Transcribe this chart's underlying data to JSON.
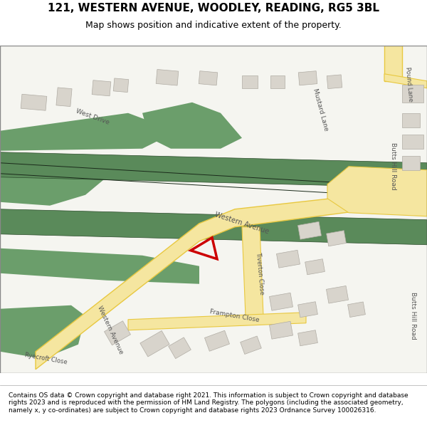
{
  "title": "121, WESTERN AVENUE, WOODLEY, READING, RG5 3BL",
  "subtitle": "Map shows position and indicative extent of the property.",
  "footer": "Contains OS data © Crown copyright and database right 2021. This information is subject to Crown copyright and database rights 2023 and is reproduced with the permission of HM Land Registry. The polygons (including the associated geometry, namely x, y co-ordinates) are subject to Crown copyright and database rights 2023 Ordnance Survey 100026316.",
  "bg_color": "#f5f5f0",
  "road_yellow": "#f5e6a0",
  "road_yellow_stroke": "#e8c840",
  "road_light": "#f5f0e8",
  "railway_green": "#5a8a5a",
  "building_fill": "#d8d4cc",
  "building_stroke": "#b0aca4",
  "green_area": "#6b9e6b",
  "red_polygon": "#cc0000",
  "text_color": "#555555",
  "road_label_color": "#555555"
}
